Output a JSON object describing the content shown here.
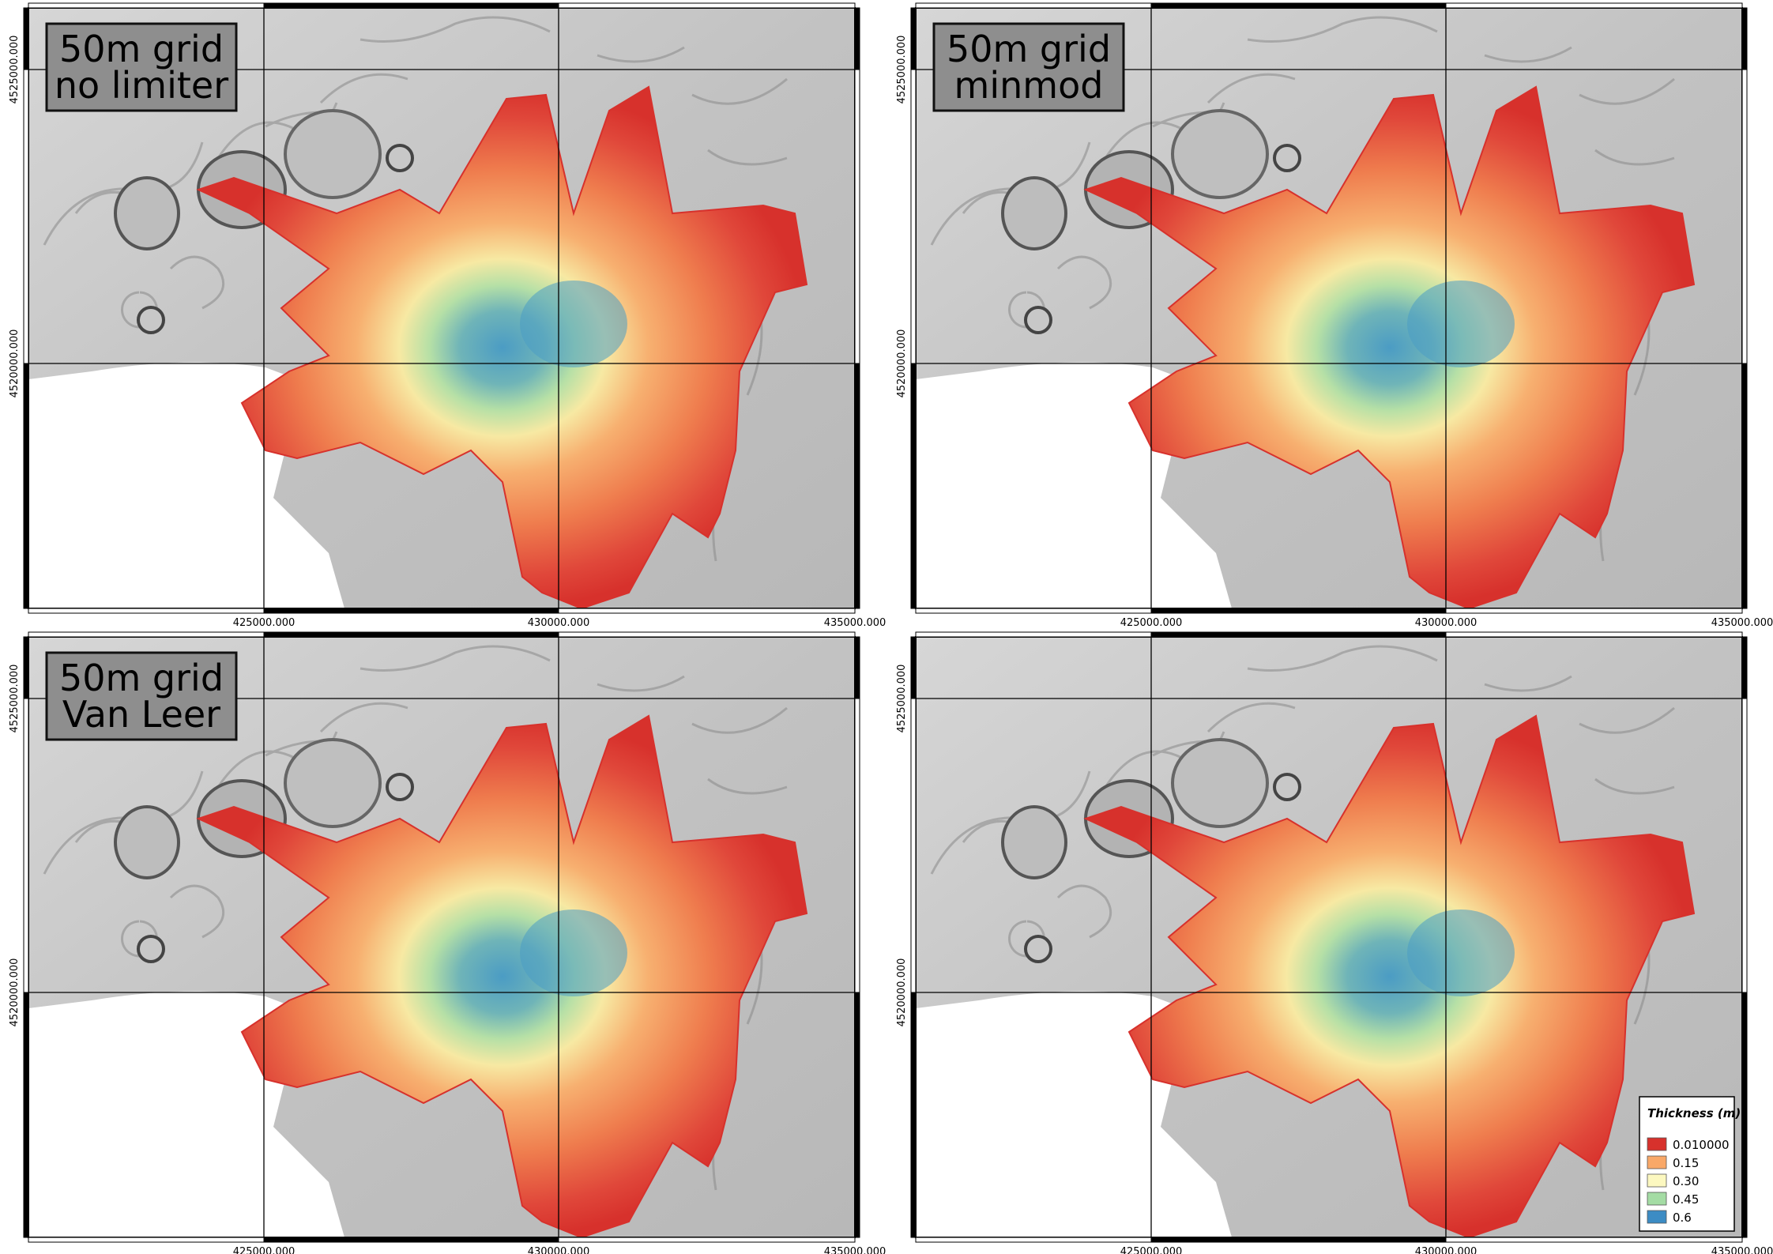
{
  "figure": {
    "panels": [
      {
        "label_lines": [
          "50m grid",
          "no limiter"
        ],
        "x_ticks": [
          "425000.000",
          "430000.000",
          "435000.000"
        ],
        "y_ticks": [
          "4525000.000",
          "4520000.000"
        ]
      },
      {
        "label_lines": [
          "50m grid",
          "minmod"
        ],
        "x_ticks": [
          "425000.000",
          "430000.000",
          "435000.000"
        ],
        "y_ticks": [
          "4525000.000",
          "4520000.000"
        ]
      },
      {
        "label_lines": [
          "50m grid",
          "Van Leer"
        ],
        "x_ticks": [
          "425000.000",
          "430000.000",
          "435000.000"
        ],
        "y_ticks": [
          "4525000.000",
          "4520000.000"
        ]
      },
      {
        "label_lines": [],
        "x_ticks": [
          "425000.000",
          "430000.000",
          "435000.000"
        ],
        "y_ticks": [
          "4525000.000",
          "4520000.000"
        ]
      }
    ],
    "legend": {
      "title": "Thickness (m)",
      "entries": [
        {
          "label": "0.010000",
          "color": "#d7312c"
        },
        {
          "label": "0.15",
          "color": "#f9a868"
        },
        {
          "label": "0.30",
          "color": "#fcf8c0"
        },
        {
          "label": "0.45",
          "color": "#a4dca4"
        },
        {
          "label": "0.6",
          "color": "#3c8cc4"
        }
      ]
    },
    "colors": {
      "terrain": "#c6c6c6",
      "sea": "#ffffff",
      "deposit_edge": "#d7312c",
      "deposit_mid": "#f28a50",
      "deposit_center": "#4b9cc4"
    }
  }
}
